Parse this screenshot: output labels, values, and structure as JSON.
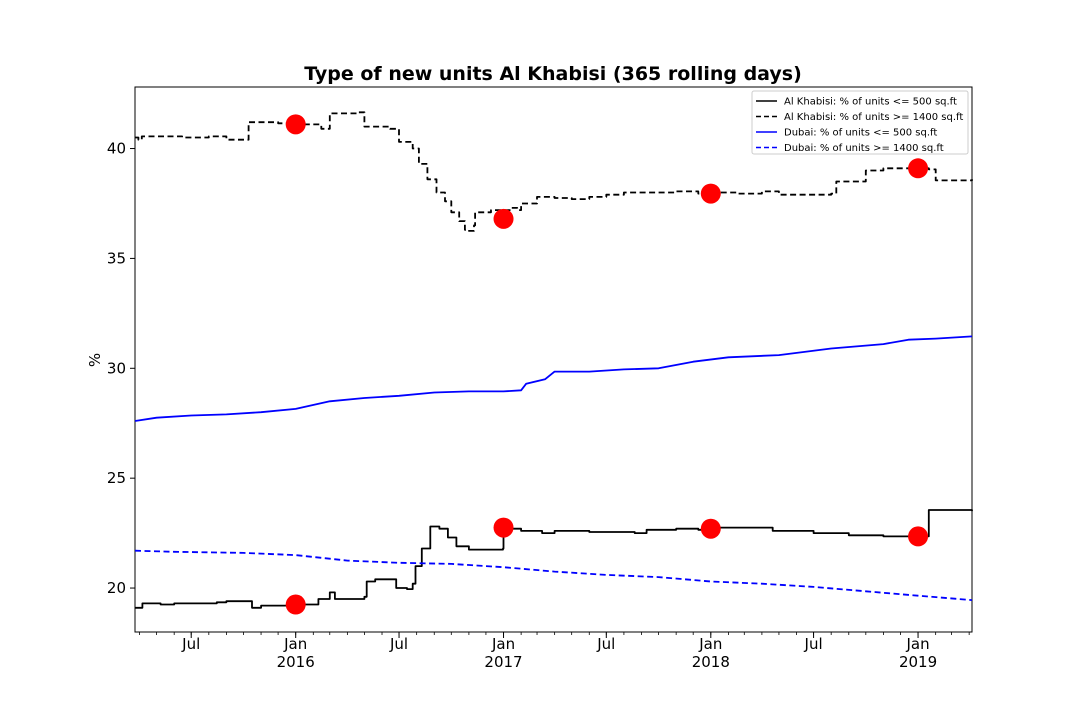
{
  "chart_data": {
    "type": "line",
    "title": "Type of new units Al Khabisi (365 rolling days)",
    "xlabel": "",
    "ylabel": "%",
    "xlim": [
      "2015-03-24",
      "2019-04-06"
    ],
    "ylim": [
      18.0,
      42.8
    ],
    "grid": false,
    "legend_position": "top-right",
    "y_ticks": [
      20,
      25,
      30,
      35,
      40
    ],
    "x_ticks": [
      {
        "date": "2015-07-01",
        "label": "Jul",
        "sublabel": ""
      },
      {
        "date": "2016-01-01",
        "label": "Jan",
        "sublabel": "2016"
      },
      {
        "date": "2016-07-01",
        "label": "Jul",
        "sublabel": ""
      },
      {
        "date": "2017-01-01",
        "label": "Jan",
        "sublabel": "2017"
      },
      {
        "date": "2017-07-01",
        "label": "Jul",
        "sublabel": ""
      },
      {
        "date": "2018-01-01",
        "label": "Jan",
        "sublabel": "2018"
      },
      {
        "date": "2018-07-01",
        "label": "Jul",
        "sublabel": ""
      },
      {
        "date": "2019-01-01",
        "label": "Jan",
        "sublabel": "2019"
      }
    ],
    "series": [
      {
        "name": "Al Khabisi: % of units <= 500 sq.ft",
        "color": "#000000",
        "style": "solid",
        "step": true,
        "points": [
          [
            "2015-03-24",
            19.1
          ],
          [
            "2015-04-05",
            19.1
          ],
          [
            "2015-04-06",
            19.3
          ],
          [
            "2015-05-07",
            19.3
          ],
          [
            "2015-05-08",
            19.25
          ],
          [
            "2015-06-01",
            19.3
          ],
          [
            "2015-08-15",
            19.35
          ],
          [
            "2015-09-01",
            19.4
          ],
          [
            "2015-10-15",
            19.4
          ],
          [
            "2015-10-16",
            19.1
          ],
          [
            "2015-11-01",
            19.2
          ],
          [
            "2016-01-15",
            19.25
          ],
          [
            "2016-02-10",
            19.5
          ],
          [
            "2016-03-01",
            19.8
          ],
          [
            "2016-03-10",
            19.5
          ],
          [
            "2016-05-01",
            19.6
          ],
          [
            "2016-05-05",
            20.3
          ],
          [
            "2016-05-20",
            20.4
          ],
          [
            "2016-06-25",
            20.4
          ],
          [
            "2016-06-26",
            20.0
          ],
          [
            "2016-07-15",
            19.95
          ],
          [
            "2016-07-25",
            20.2
          ],
          [
            "2016-07-30",
            21.0
          ],
          [
            "2016-08-10",
            21.8
          ],
          [
            "2016-08-25",
            22.8
          ],
          [
            "2016-09-10",
            22.7
          ],
          [
            "2016-09-25",
            22.3
          ],
          [
            "2016-10-10",
            21.9
          ],
          [
            "2016-11-01",
            21.75
          ],
          [
            "2016-12-31",
            21.8
          ],
          [
            "2017-01-01",
            22.7
          ],
          [
            "2017-02-01",
            22.6
          ],
          [
            "2017-03-10",
            22.5
          ],
          [
            "2017-04-01",
            22.6
          ],
          [
            "2017-06-01",
            22.55
          ],
          [
            "2017-08-20",
            22.5
          ],
          [
            "2017-09-10",
            22.65
          ],
          [
            "2017-11-01",
            22.7
          ],
          [
            "2017-12-10",
            22.65
          ],
          [
            "2018-01-15",
            22.75
          ],
          [
            "2018-03-10",
            22.75
          ],
          [
            "2018-04-20",
            22.6
          ],
          [
            "2018-07-01",
            22.5
          ],
          [
            "2018-08-15",
            22.5
          ],
          [
            "2018-09-01",
            22.4
          ],
          [
            "2018-11-01",
            22.35
          ],
          [
            "2019-01-15",
            22.35
          ],
          [
            "2019-01-20",
            23.55
          ],
          [
            "2019-04-06",
            23.5
          ]
        ]
      },
      {
        "name": "Al Khabisi: % of units >= 1400 sq.ft",
        "color": "#000000",
        "style": "dashed",
        "step": true,
        "points": [
          [
            "2015-03-24",
            40.5
          ],
          [
            "2015-03-30",
            40.4
          ],
          [
            "2015-04-05",
            40.55
          ],
          [
            "2015-06-15",
            40.5
          ],
          [
            "2015-08-01",
            40.55
          ],
          [
            "2015-09-01",
            40.4
          ],
          [
            "2015-10-10",
            41.2
          ],
          [
            "2015-12-01",
            41.15
          ],
          [
            "2016-01-05",
            41.1
          ],
          [
            "2016-02-15",
            40.9
          ],
          [
            "2016-03-01",
            41.6
          ],
          [
            "2016-04-20",
            41.65
          ],
          [
            "2016-05-01",
            41.0
          ],
          [
            "2016-06-15",
            40.9
          ],
          [
            "2016-07-01",
            40.3
          ],
          [
            "2016-07-25",
            40.0
          ],
          [
            "2016-08-05",
            39.3
          ],
          [
            "2016-08-20",
            38.6
          ],
          [
            "2016-09-05",
            38.0
          ],
          [
            "2016-09-20",
            37.6
          ],
          [
            "2016-10-01",
            37.1
          ],
          [
            "2016-10-15",
            36.7
          ],
          [
            "2016-10-25",
            36.3
          ],
          [
            "2016-11-01",
            36.25
          ],
          [
            "2016-11-10",
            36.5
          ],
          [
            "2016-11-12",
            37.1
          ],
          [
            "2016-12-10",
            37.2
          ],
          [
            "2017-01-15",
            37.3
          ],
          [
            "2017-01-25",
            37.2
          ],
          [
            "2017-02-01",
            37.5
          ],
          [
            "2017-03-01",
            37.8
          ],
          [
            "2017-04-01",
            37.75
          ],
          [
            "2017-05-01",
            37.7
          ],
          [
            "2017-06-01",
            37.8
          ],
          [
            "2017-07-01",
            37.9
          ],
          [
            "2017-08-01",
            38.0
          ],
          [
            "2017-10-01",
            38.0
          ],
          [
            "2017-11-01",
            38.05
          ],
          [
            "2017-12-10",
            37.95
          ],
          [
            "2018-01-15",
            38.0
          ],
          [
            "2018-02-15",
            37.95
          ],
          [
            "2018-04-01",
            38.05
          ],
          [
            "2018-05-01",
            37.9
          ],
          [
            "2018-08-01",
            37.95
          ],
          [
            "2018-08-10",
            38.5
          ],
          [
            "2018-09-20",
            38.5
          ],
          [
            "2018-10-01",
            39.0
          ],
          [
            "2018-11-01",
            39.1
          ],
          [
            "2019-01-20",
            39.05
          ],
          [
            "2019-02-01",
            38.55
          ],
          [
            "2019-04-06",
            38.6
          ]
        ]
      },
      {
        "name": "Dubai: % of units <= 500 sq.ft",
        "color": "#0000ff",
        "style": "solid",
        "step": false,
        "points": [
          [
            "2015-03-24",
            27.6
          ],
          [
            "2015-05-01",
            27.75
          ],
          [
            "2015-07-01",
            27.85
          ],
          [
            "2015-09-01",
            27.9
          ],
          [
            "2015-11-01",
            28.0
          ],
          [
            "2016-01-01",
            28.15
          ],
          [
            "2016-03-01",
            28.5
          ],
          [
            "2016-05-01",
            28.65
          ],
          [
            "2016-07-01",
            28.75
          ],
          [
            "2016-09-01",
            28.9
          ],
          [
            "2016-11-01",
            28.95
          ],
          [
            "2017-01-01",
            28.95
          ],
          [
            "2017-02-01",
            29.0
          ],
          [
            "2017-02-10",
            29.3
          ],
          [
            "2017-03-15",
            29.5
          ],
          [
            "2017-04-01",
            29.85
          ],
          [
            "2017-06-01",
            29.85
          ],
          [
            "2017-08-01",
            29.95
          ],
          [
            "2017-10-01",
            30.0
          ],
          [
            "2017-12-01",
            30.3
          ],
          [
            "2018-02-01",
            30.5
          ],
          [
            "2018-05-01",
            30.6
          ],
          [
            "2018-08-01",
            30.9
          ],
          [
            "2018-11-01",
            31.1
          ],
          [
            "2018-12-15",
            31.3
          ],
          [
            "2019-02-01",
            31.35
          ],
          [
            "2019-04-06",
            31.45
          ]
        ]
      },
      {
        "name": "Dubai: % of units >= 1400 sq.ft",
        "color": "#0000ff",
        "style": "dashed",
        "step": false,
        "points": [
          [
            "2015-03-24",
            21.7
          ],
          [
            "2015-06-01",
            21.65
          ],
          [
            "2015-10-01",
            21.6
          ],
          [
            "2016-01-01",
            21.5
          ],
          [
            "2016-04-01",
            21.25
          ],
          [
            "2016-07-01",
            21.15
          ],
          [
            "2016-10-01",
            21.1
          ],
          [
            "2017-01-01",
            20.95
          ],
          [
            "2017-04-01",
            20.75
          ],
          [
            "2017-07-01",
            20.6
          ],
          [
            "2017-10-01",
            20.5
          ],
          [
            "2018-01-01",
            20.3
          ],
          [
            "2018-04-01",
            20.2
          ],
          [
            "2018-07-01",
            20.05
          ],
          [
            "2018-10-01",
            19.85
          ],
          [
            "2019-01-01",
            19.65
          ],
          [
            "2019-04-06",
            19.45
          ]
        ]
      }
    ],
    "markers": {
      "color": "#ff0000",
      "points": [
        [
          "2016-01-01",
          41.1
        ],
        [
          "2017-01-01",
          36.8
        ],
        [
          "2018-01-01",
          37.95
        ],
        [
          "2019-01-01",
          39.1
        ],
        [
          "2016-01-01",
          19.25
        ],
        [
          "2017-01-01",
          22.75
        ],
        [
          "2018-01-01",
          22.7
        ],
        [
          "2019-01-01",
          22.35
        ]
      ]
    }
  }
}
